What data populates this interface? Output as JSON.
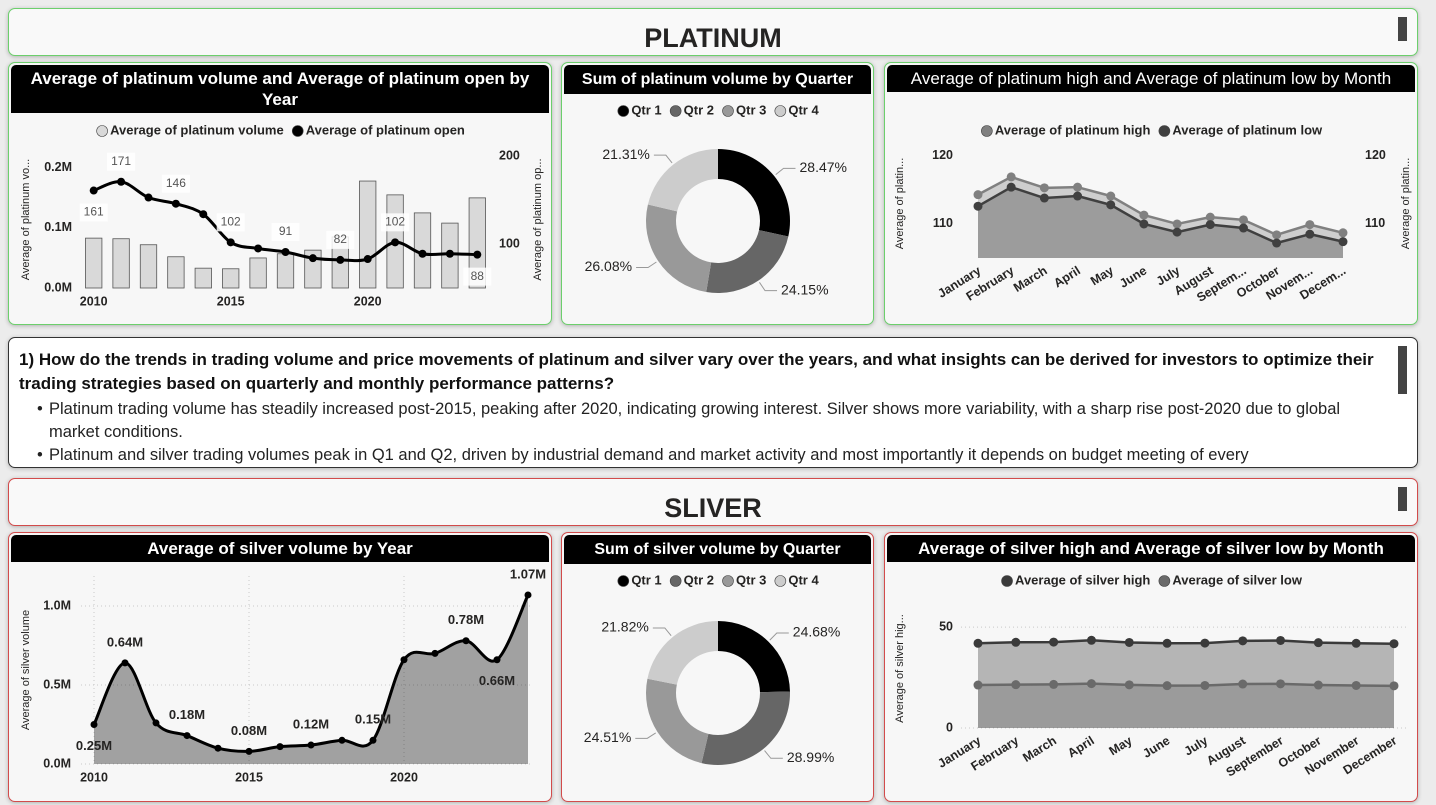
{
  "headers": [
    "PLATINUM",
    "SLIVER"
  ],
  "insight": {
    "question": "1) How do the trends in trading volume and price movements of platinum and silver vary over the years, and what insights can be derived for investors to optimize their trading strategies based on quarterly and monthly performance patterns?",
    "bullets": [
      "Platinum trading volume has steadily increased post-2015, peaking after 2020, indicating growing interest. Silver shows more variability, with a sharp rise post-2020 due to global market conditions.",
      "Platinum and silver trading volumes peak in Q1 and Q2, driven by industrial demand and market activity and most importantly it depends on budget meeting of every"
    ]
  },
  "chart_data": [
    {
      "type": "combo",
      "title": "Average of platinum volume and Average of platinum open by Year",
      "x": [
        2010,
        2011,
        2012,
        2013,
        2014,
        2015,
        2016,
        2017,
        2018,
        2019,
        2020,
        2021,
        2022,
        2023,
        2024
      ],
      "xlim": [
        2009.5,
        2024.5
      ],
      "xticks": [
        2010,
        2015,
        2020
      ],
      "ylim": [
        0,
        228000
      ],
      "yticks": [
        {
          "value": 0,
          "label": "0.0M"
        },
        {
          "value": 100000,
          "label": "0.1M"
        },
        {
          "value": 200000,
          "label": "0.2M"
        }
      ],
      "y2lim": [
        50,
        206
      ],
      "y2ticks": [
        100,
        200
      ],
      "ylabel": "Average of platinum vo...",
      "y2label": "Average of platinum op...",
      "legend": "top",
      "series": [
        {
          "name": "Average of platinum volume",
          "type": "bar",
          "color": "#d9d9d9",
          "values": [
            83000,
            82000,
            72000,
            52000,
            33000,
            32000,
            50000,
            57000,
            63000,
            85000,
            178000,
            155000,
            125000,
            108000,
            150000
          ]
        },
        {
          "name": "Average of platinum open",
          "type": "line",
          "axis": "y2",
          "color": "#000000",
          "smooth": true,
          "values": [
            161,
            171,
            153,
            146,
            134,
            102,
            95,
            91,
            84,
            82,
            83,
            102,
            89,
            89,
            88
          ],
          "value_labels": [
            "161",
            "171",
            null,
            "146",
            null,
            "102",
            null,
            "91",
            null,
            "82",
            null,
            "102",
            null,
            null,
            "88"
          ]
        }
      ]
    },
    {
      "type": "donut",
      "title": "Sum of platinum volume by Quarter",
      "categories": [
        "Qtr 1",
        "Qtr 2",
        "Qtr 3",
        "Qtr 4"
      ],
      "values": [
        28.47,
        24.15,
        26.08,
        21.31
      ],
      "value_labels": [
        "28.47%",
        "24.15%",
        "26.08%",
        "21.31%"
      ],
      "colors": [
        "#000000",
        "#666666",
        "#999999",
        "#cccccc"
      ],
      "legend": "top"
    },
    {
      "type": "line",
      "area": true,
      "title": "Average of platinum high and Average of platinum low by Month",
      "categories": [
        "January",
        "February",
        "March",
        "April",
        "May",
        "June",
        "July",
        "August",
        "Septem...",
        "October",
        "Novem...",
        "Decem..."
      ],
      "ylim": [
        105,
        121
      ],
      "yticks": [
        110,
        120
      ],
      "y2lim": [
        105,
        121
      ],
      "y2ticks": [
        110,
        120
      ],
      "ylabel": "Average of platin...",
      "y2label": "Average of platin...",
      "legend": "top",
      "series": [
        {
          "name": "Average of platinum high",
          "color": "#808080",
          "values": [
            114.3,
            116.9,
            115.3,
            115.4,
            114.1,
            111.3,
            110.0,
            111.0,
            110.6,
            108.4,
            109.9,
            108.7
          ]
        },
        {
          "name": "Average of platinum low",
          "color": "#404040",
          "values": [
            112.6,
            115.4,
            113.8,
            114.1,
            112.8,
            110.0,
            108.8,
            109.9,
            109.4,
            107.2,
            108.5,
            107.4
          ]
        }
      ]
    },
    {
      "type": "line",
      "area": true,
      "smooth": true,
      "grid": true,
      "title": "Average of silver volume by Year",
      "x": [
        2010,
        2011,
        2012,
        2013,
        2014,
        2015,
        2016,
        2017,
        2018,
        2019,
        2020,
        2021,
        2022,
        2023,
        2024
      ],
      "xlim": [
        2009.5,
        2024.5
      ],
      "xticks": [
        2010,
        2015,
        2020
      ],
      "ylim": [
        0,
        1190000
      ],
      "yticks": [
        {
          "value": 0,
          "label": "0.0M"
        },
        {
          "value": 500000,
          "label": "0.5M"
        },
        {
          "value": 1000000,
          "label": "1.0M"
        }
      ],
      "ylabel": "Average of silver volume",
      "color": "#000000",
      "values": [
        250000,
        640000,
        260000,
        180000,
        100000,
        80000,
        110000,
        120000,
        150000,
        150000,
        660000,
        700000,
        780000,
        660000,
        1070000
      ],
      "value_labels": [
        "0.25M",
        "0.64M",
        null,
        "0.18M",
        null,
        "0.08M",
        null,
        "0.12M",
        null,
        "0.15M",
        null,
        null,
        "0.78M",
        "0.66M",
        "1.07M"
      ]
    },
    {
      "type": "donut",
      "title": "Sum of silver volume by Quarter",
      "categories": [
        "Qtr 1",
        "Qtr 2",
        "Qtr 3",
        "Qtr 4"
      ],
      "values": [
        24.68,
        28.99,
        24.51,
        21.82
      ],
      "value_labels": [
        "24.68%",
        "28.99%",
        "24.51%",
        "21.82%"
      ],
      "colors": [
        "#000000",
        "#666666",
        "#999999",
        "#cccccc"
      ],
      "legend": "top"
    },
    {
      "type": "line",
      "area": true,
      "grid": true,
      "title": "Average of silver high and Average of silver low by Month",
      "categories": [
        "January",
        "February",
        "March",
        "April",
        "May",
        "June",
        "July",
        "August",
        "September",
        "October",
        "November",
        "December"
      ],
      "ylim": [
        0,
        59
      ],
      "yticks": [
        0,
        50
      ],
      "ylabel": "Average of silver hig...",
      "legend": "top",
      "series": [
        {
          "name": "Average of silver high",
          "color": "#3a3a3a",
          "values": [
            42.0,
            42.5,
            42.6,
            43.5,
            42.4,
            42.0,
            42.1,
            43.2,
            43.4,
            42.3,
            42.0,
            41.8
          ]
        },
        {
          "name": "Average of silver low",
          "color": "#6a6a6a",
          "values": [
            21.3,
            21.5,
            21.6,
            22.0,
            21.4,
            21.0,
            21.1,
            21.8,
            21.9,
            21.3,
            21.1,
            20.9
          ]
        }
      ]
    }
  ]
}
